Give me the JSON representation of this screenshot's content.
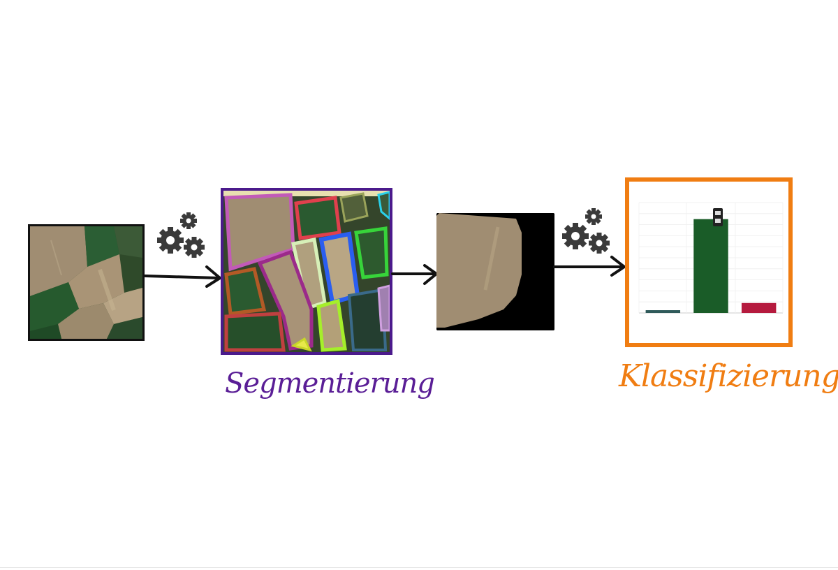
{
  "diagram": {
    "steps": [
      {
        "id": "input",
        "label": ""
      },
      {
        "id": "segmentation",
        "label": "Segmentierung"
      },
      {
        "id": "extracted-field",
        "label": ""
      },
      {
        "id": "classification",
        "label": "Klassifizierung"
      }
    ],
    "icons": {
      "process": "gears-icon",
      "arrow": "arrow-right-icon"
    },
    "colors": {
      "segmentation_label": "#5a1e96",
      "segmentation_border": "#4b1a8c",
      "classification_label": "#f07d12",
      "classification_border": "#f07d12",
      "arrow": "#111111",
      "gear": "#3a3a3a"
    }
  },
  "chart_data": {
    "type": "bar",
    "categories": [
      "",
      "",
      ""
    ],
    "values": [
      0.25,
      8.5,
      0.9
    ],
    "colors": [
      "#2f5a5a",
      "#1a5c28",
      "#b51a3e"
    ],
    "ylim": [
      0,
      10
    ],
    "grid": true,
    "title": "",
    "xlabel": "",
    "ylabel": ""
  }
}
